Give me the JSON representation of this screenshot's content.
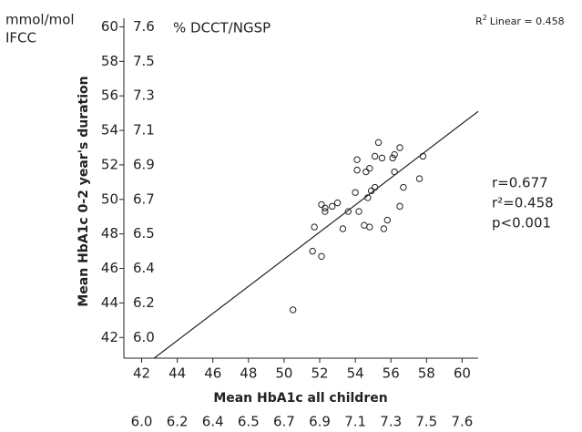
{
  "chart_data": {
    "type": "scatter",
    "unit_label": [
      "mmol/mol",
      "IFCC"
    ],
    "alt_unit_label": "% DCCT/NGSP",
    "xlabel": "Mean HbA1c all children",
    "ylabel": "Mean HbA1c 0-2 year's duration",
    "fit_label": {
      "base": "R",
      "sup": "2",
      "text": "Linear = 0.458"
    },
    "stats": [
      "r=0.677",
      "r²=0.458",
      "p<0.001"
    ],
    "xlim": [
      41,
      60.9
    ],
    "ylim": [
      40.8,
      60.5
    ],
    "xticks": [
      42,
      44,
      46,
      48,
      50,
      52,
      54,
      56,
      58,
      60
    ],
    "yticks": [
      42,
      44,
      46,
      48,
      50,
      52,
      54,
      56,
      58,
      60
    ],
    "x_alt_ticks": [
      {
        "value": 42,
        "label": "6.0"
      },
      {
        "value": 44,
        "label": "6.2"
      },
      {
        "value": 46,
        "label": "6.4"
      },
      {
        "value": 48,
        "label": "6.5"
      },
      {
        "value": 50,
        "label": "6.7"
      },
      {
        "value": 52,
        "label": "6.9"
      },
      {
        "value": 54,
        "label": "7.1"
      },
      {
        "value": 56,
        "label": "7.3"
      },
      {
        "value": 58,
        "label": "7.5"
      },
      {
        "value": 60,
        "label": "7.6"
      }
    ],
    "y_alt_ticks": [
      {
        "value": 42,
        "label": "6.0"
      },
      {
        "value": 44,
        "label": "6.2"
      },
      {
        "value": 46,
        "label": "6.4"
      },
      {
        "value": 48,
        "label": "6.5"
      },
      {
        "value": 50,
        "label": "6.7"
      },
      {
        "value": 52,
        "label": "6.9"
      },
      {
        "value": 54,
        "label": "7.1"
      },
      {
        "value": 56,
        "label": "7.3"
      },
      {
        "value": 58,
        "label": "7.5"
      },
      {
        "value": 60,
        "label": "7.6"
      }
    ],
    "x": [
      50.5,
      51.6,
      52.1,
      51.7,
      52.1,
      52.3,
      52.3,
      52.7,
      53.0,
      53.3,
      53.6,
      54.0,
      54.1,
      54.1,
      54.2,
      54.5,
      54.7,
      54.6,
      54.8,
      54.8,
      54.9,
      55.1,
      55.1,
      55.3,
      55.5,
      55.6,
      55.8,
      56.1,
      56.2,
      56.2,
      56.5,
      56.5,
      56.7,
      57.6,
      57.8
    ],
    "y": [
      43.6,
      47.0,
      46.7,
      48.4,
      49.7,
      49.5,
      49.3,
      49.6,
      49.8,
      48.3,
      49.3,
      50.4,
      52.3,
      51.7,
      49.3,
      48.5,
      50.1,
      51.6,
      51.8,
      48.4,
      50.5,
      50.7,
      52.5,
      53.3,
      52.4,
      48.3,
      48.8,
      52.4,
      52.6,
      51.6,
      53.0,
      49.6,
      50.7,
      51.2,
      52.5
    ],
    "fit_line": {
      "x": [
        42.7,
        60.9
      ],
      "y": [
        40.8,
        55.1
      ]
    }
  }
}
